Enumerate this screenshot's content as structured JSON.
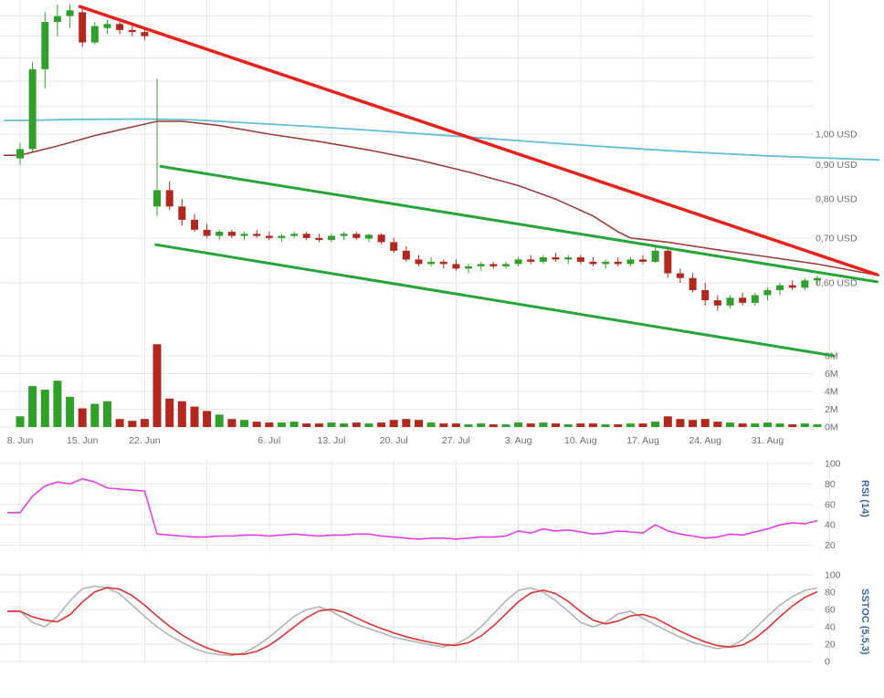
{
  "chart_data": {
    "type": "candlestick",
    "title": "",
    "grid": true,
    "x_axis": {
      "labels": [
        {
          "i": 0,
          "label": "8. Jun"
        },
        {
          "i": 5,
          "label": "15. Jun"
        },
        {
          "i": 10,
          "label": "22. Jun"
        },
        {
          "i": 20,
          "label": "6. Jul"
        },
        {
          "i": 25,
          "label": "13. Jul"
        },
        {
          "i": 30,
          "label": "20. Jul"
        },
        {
          "i": 35,
          "label": "27. Jul"
        },
        {
          "i": 40,
          "label": "3. Aug"
        },
        {
          "i": 45,
          "label": "10. Aug"
        },
        {
          "i": 50,
          "label": "17. Aug"
        },
        {
          "i": 55,
          "label": "24. Aug"
        },
        {
          "i": 60,
          "label": "31. Aug"
        }
      ],
      "gridline_indices": [
        0,
        5,
        10,
        15,
        20,
        25,
        30,
        35,
        40,
        45,
        50,
        55,
        60,
        65
      ]
    },
    "panels": {
      "price": {
        "scale": "log",
        "ylim": [
          0.53,
          1.58
        ],
        "unit": "USD",
        "up_color": "#2fa12b",
        "down_color": "#b3281e",
        "y_labels": [
          {
            "label": "1,00 USD",
            "value": 1.0
          },
          {
            "label": "0,90 USD",
            "value": 0.9
          },
          {
            "label": "0,80 USD",
            "value": 0.8
          },
          {
            "label": "0,70 USD",
            "value": 0.7
          },
          {
            "label": "0,60 USD",
            "value": 0.6
          }
        ],
        "grid_prices": [
          1.5,
          1.4,
          1.3,
          1.2,
          1.1,
          1.0,
          0.9,
          0.8,
          0.7,
          0.6
        ],
        "columns": [
          "open",
          "high",
          "low",
          "close",
          "volume_millions"
        ],
        "candles": [
          [
            0.92,
            0.97,
            0.9,
            0.95,
            1.2
          ],
          [
            0.95,
            1.28,
            0.94,
            1.25,
            4.6
          ],
          [
            1.25,
            1.52,
            1.17,
            1.47,
            4.2
          ],
          [
            1.47,
            1.56,
            1.4,
            1.5,
            5.2
          ],
          [
            1.5,
            1.56,
            1.44,
            1.53,
            3.4
          ],
          [
            1.52,
            1.55,
            1.35,
            1.37,
            2.1
          ],
          [
            1.37,
            1.47,
            1.36,
            1.45,
            2.6
          ],
          [
            1.44,
            1.48,
            1.41,
            1.46,
            2.9
          ],
          [
            1.46,
            1.47,
            1.41,
            1.43,
            0.9
          ],
          [
            1.43,
            1.46,
            1.4,
            1.42,
            0.7
          ],
          [
            1.42,
            1.44,
            1.38,
            1.4,
            0.9
          ],
          [
            0.78,
            1.21,
            0.755,
            0.825,
            9.3
          ],
          [
            0.825,
            0.85,
            0.77,
            0.78,
            3.2
          ],
          [
            0.78,
            0.8,
            0.73,
            0.745,
            2.9
          ],
          [
            0.745,
            0.76,
            0.715,
            0.72,
            2.3
          ],
          [
            0.72,
            0.735,
            0.7,
            0.705,
            1.8
          ],
          [
            0.705,
            0.72,
            0.695,
            0.715,
            1.4
          ],
          [
            0.715,
            0.72,
            0.7,
            0.705,
            0.9
          ],
          [
            0.705,
            0.715,
            0.695,
            0.71,
            0.8
          ],
          [
            0.71,
            0.72,
            0.7,
            0.705,
            0.6
          ],
          [
            0.705,
            0.715,
            0.695,
            0.7,
            0.5
          ],
          [
            0.7,
            0.71,
            0.69,
            0.705,
            0.5
          ],
          [
            0.705,
            0.715,
            0.7,
            0.71,
            0.6
          ],
          [
            0.71,
            0.715,
            0.695,
            0.7,
            0.4
          ],
          [
            0.7,
            0.71,
            0.69,
            0.695,
            0.4
          ],
          [
            0.695,
            0.71,
            0.69,
            0.705,
            0.5
          ],
          [
            0.705,
            0.715,
            0.695,
            0.71,
            0.4
          ],
          [
            0.71,
            0.715,
            0.695,
            0.7,
            0.5
          ],
          [
            0.698,
            0.71,
            0.69,
            0.708,
            0.4
          ],
          [
            0.708,
            0.712,
            0.685,
            0.69,
            0.5
          ],
          [
            0.69,
            0.7,
            0.665,
            0.67,
            0.8
          ],
          [
            0.67,
            0.68,
            0.645,
            0.65,
            0.9
          ],
          [
            0.65,
            0.66,
            0.635,
            0.64,
            0.8
          ],
          [
            0.64,
            0.655,
            0.635,
            0.645,
            0.5
          ],
          [
            0.645,
            0.65,
            0.63,
            0.64,
            0.4
          ],
          [
            0.64,
            0.65,
            0.625,
            0.63,
            0.4
          ],
          [
            0.63,
            0.64,
            0.62,
            0.635,
            0.3
          ],
          [
            0.635,
            0.645,
            0.625,
            0.64,
            0.4
          ],
          [
            0.64,
            0.645,
            0.63,
            0.635,
            0.3
          ],
          [
            0.635,
            0.645,
            0.63,
            0.64,
            0.3
          ],
          [
            0.64,
            0.655,
            0.635,
            0.65,
            0.5
          ],
          [
            0.65,
            0.66,
            0.64,
            0.645,
            0.4
          ],
          [
            0.645,
            0.66,
            0.64,
            0.655,
            0.5
          ],
          [
            0.655,
            0.665,
            0.645,
            0.65,
            0.4
          ],
          [
            0.65,
            0.66,
            0.64,
            0.655,
            0.3
          ],
          [
            0.655,
            0.66,
            0.64,
            0.645,
            0.4
          ],
          [
            0.645,
            0.655,
            0.635,
            0.64,
            0.4
          ],
          [
            0.64,
            0.65,
            0.63,
            0.645,
            0.3
          ],
          [
            0.645,
            0.655,
            0.635,
            0.64,
            0.3
          ],
          [
            0.64,
            0.655,
            0.635,
            0.65,
            0.4
          ],
          [
            0.65,
            0.66,
            0.64,
            0.645,
            0.4
          ],
          [
            0.645,
            0.68,
            0.643,
            0.67,
            0.6
          ],
          [
            0.67,
            0.68,
            0.61,
            0.62,
            1.2
          ],
          [
            0.62,
            0.63,
            0.6,
            0.61,
            0.9
          ],
          [
            0.61,
            0.62,
            0.58,
            0.585,
            0.8
          ],
          [
            0.585,
            0.6,
            0.555,
            0.565,
            0.9
          ],
          [
            0.565,
            0.575,
            0.545,
            0.555,
            0.6
          ],
          [
            0.555,
            0.575,
            0.55,
            0.57,
            0.5
          ],
          [
            0.57,
            0.58,
            0.555,
            0.56,
            0.4
          ],
          [
            0.56,
            0.58,
            0.555,
            0.575,
            0.4
          ],
          [
            0.575,
            0.59,
            0.565,
            0.585,
            0.5
          ],
          [
            0.585,
            0.6,
            0.575,
            0.595,
            0.4
          ],
          [
            0.595,
            0.605,
            0.585,
            0.59,
            0.3
          ],
          [
            0.59,
            0.61,
            0.585,
            0.605,
            0.4
          ],
          [
            0.605,
            0.615,
            0.595,
            0.61,
            0.3
          ]
        ],
        "trendlines": [
          {
            "name": "downtrend-resistance",
            "color": "#e8211d",
            "width": 3.5,
            "from": [
              4.8,
              1.55
            ],
            "to": [
              68.8,
              0.617
            ]
          },
          {
            "name": "channel-upper",
            "color": "#27a43a",
            "width": 3,
            "from": [
              11.3,
              0.895
            ],
            "to": [
              68.8,
              0.602
            ]
          },
          {
            "name": "channel-lower",
            "color": "#27a43a",
            "width": 3,
            "from": [
              10.9,
              0.684
            ],
            "to": [
              65.3,
              0.467
            ]
          }
        ],
        "moving_averages": [
          {
            "name": "ma-slow",
            "color": "#9e3d3d",
            "width": 1.6,
            "anchors": [
              [
                0,
                0.93
              ],
              [
                3,
                0.96
              ],
              [
                6,
                0.995
              ],
              [
                9,
                1.025
              ],
              [
                11,
                1.045
              ],
              [
                13,
                1.045
              ],
              [
                16,
                1.03
              ],
              [
                20,
                1.0
              ],
              [
                24,
                0.975
              ],
              [
                28,
                0.947
              ],
              [
                32,
                0.915
              ],
              [
                36,
                0.878
              ],
              [
                40,
                0.838
              ],
              [
                43,
                0.8
              ],
              [
                46,
                0.755
              ],
              [
                48,
                0.715
              ],
              [
                49,
                0.7
              ],
              [
                52,
                0.69
              ],
              [
                56,
                0.672
              ],
              [
                60,
                0.656
              ],
              [
                64,
                0.64
              ],
              [
                69,
                0.615
              ]
            ]
          },
          {
            "name": "ma-fast",
            "color": "#63bed6",
            "width": 1.8,
            "anchors": [
              [
                0,
                1.048
              ],
              [
                5,
                1.052
              ],
              [
                10,
                1.053
              ],
              [
                14,
                1.05
              ],
              [
                18,
                1.04
              ],
              [
                24,
                1.025
              ],
              [
                30,
                1.008
              ],
              [
                36,
                0.99
              ],
              [
                42,
                0.972
              ],
              [
                48,
                0.955
              ],
              [
                54,
                0.94
              ],
              [
                60,
                0.928
              ],
              [
                64,
                0.922
              ],
              [
                69,
                0.915
              ]
            ]
          }
        ]
      },
      "volume": {
        "unit": "M",
        "ylim": [
          0,
          10
        ],
        "y_labels": [
          {
            "label": "8M",
            "value": 8
          },
          {
            "label": "6M",
            "value": 6
          },
          {
            "label": "4M",
            "value": 4
          },
          {
            "label": "2M",
            "value": 2
          },
          {
            "label": "0M",
            "value": 0
          }
        ]
      },
      "rsi": {
        "label": "RSI (14)",
        "color": "#e83be8",
        "ylim": [
          0,
          100
        ],
        "y_labels": [
          100,
          80,
          60,
          40,
          20
        ],
        "values": [
          52,
          68,
          78,
          82,
          80,
          85,
          82,
          76,
          75,
          74,
          73,
          31,
          30,
          29,
          28,
          28,
          29,
          29,
          30,
          30,
          29,
          30,
          31,
          30,
          29,
          30,
          30,
          31,
          31,
          29,
          28,
          27,
          26,
          27,
          27,
          26,
          27,
          28,
          28,
          29,
          34,
          32,
          36,
          34,
          35,
          33,
          31,
          32,
          34,
          33,
          32,
          40,
          34,
          31,
          29,
          27,
          28,
          31,
          30,
          33,
          36,
          40,
          42,
          41,
          44
        ]
      },
      "stochastic": {
        "label": "SSTOC (5,5,3)",
        "k_color": "#b3b3b3",
        "d_color": "#e03131",
        "ylim": [
          0,
          100
        ],
        "y_labels": [
          100,
          80,
          60,
          40,
          20,
          0
        ],
        "k_values": [
          58,
          45,
          40,
          52,
          70,
          84,
          87,
          85,
          78,
          65,
          52,
          40,
          30,
          22,
          15,
          10,
          8,
          7,
          10,
          18,
          28,
          40,
          52,
          60,
          63,
          58,
          50,
          43,
          38,
          33,
          28,
          25,
          22,
          19,
          17,
          20,
          28,
          40,
          55,
          70,
          82,
          85,
          80,
          70,
          58,
          45,
          40,
          45,
          55,
          58,
          50,
          42,
          35,
          28,
          22,
          18,
          15,
          17,
          25,
          38,
          52,
          65,
          75,
          82,
          85
        ]
      }
    }
  }
}
